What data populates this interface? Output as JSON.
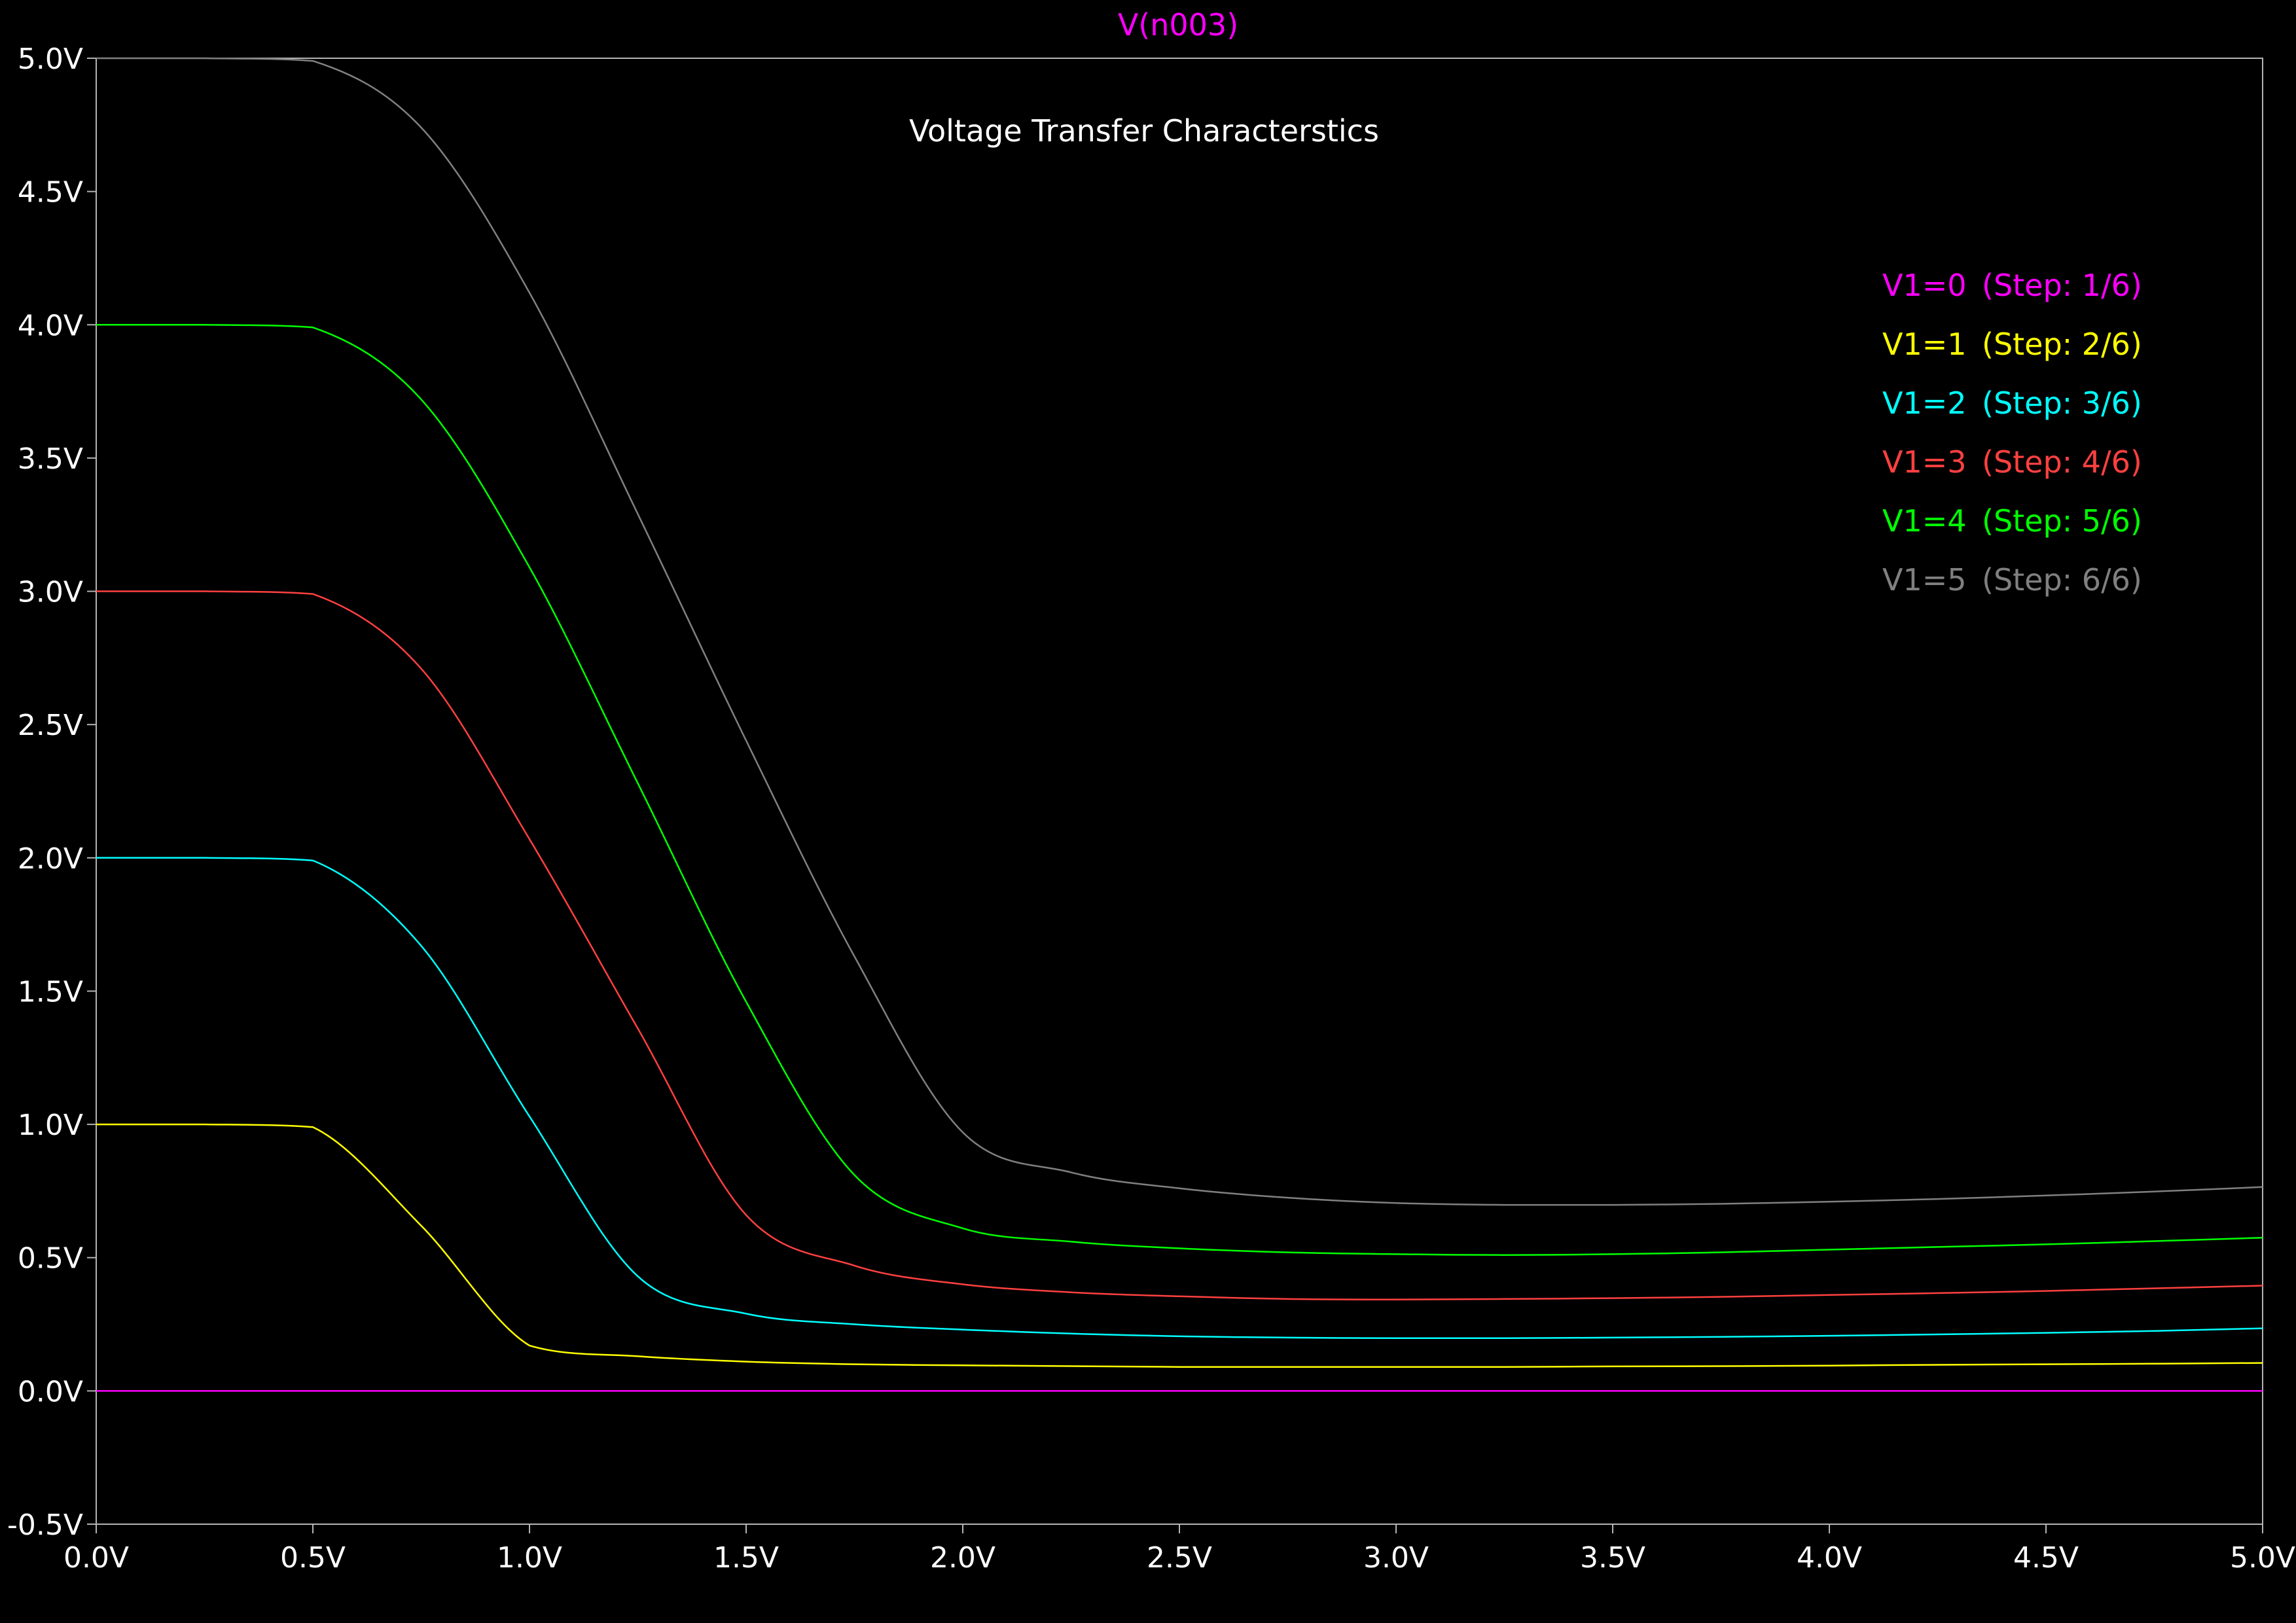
{
  "trace_name": "V(n003)",
  "colors": {
    "background": "#000000",
    "axis": "#b4b4b4",
    "text": "#ffffff",
    "trace_name": "#ff00ff"
  },
  "chart_data": {
    "type": "line",
    "title": "Voltage Transfer Characterstics",
    "xlabel": "",
    "ylabel": "",
    "xlim": [
      0,
      5
    ],
    "ylim": [
      -0.5,
      5
    ],
    "grid": false,
    "legend_position": "top-right",
    "x_ticks": [
      "0.0V",
      "0.5V",
      "1.0V",
      "1.5V",
      "2.0V",
      "2.5V",
      "3.0V",
      "3.5V",
      "4.0V",
      "4.5V",
      "5.0V"
    ],
    "y_ticks": [
      "-0.5V",
      "0.0V",
      "0.5V",
      "1.0V",
      "1.5V",
      "2.0V",
      "2.5V",
      "3.0V",
      "3.5V",
      "4.0V",
      "4.5V",
      "5.0V"
    ],
    "x": [
      0,
      0.25,
      0.5,
      0.75,
      1.0,
      1.25,
      1.5,
      1.75,
      2.0,
      2.25,
      2.5,
      2.75,
      3.0,
      3.25,
      3.5,
      3.75,
      4.0,
      4.25,
      4.5,
      4.75,
      5.0
    ],
    "series": [
      {
        "name": "V1=0",
        "step": "(Step: 1/6)",
        "color": "#ff00ff",
        "values": [
          0,
          0,
          0,
          0,
          0,
          0,
          0,
          0,
          0,
          0,
          0,
          0,
          0,
          0,
          0,
          0,
          0,
          0,
          0,
          0,
          0
        ]
      },
      {
        "name": "V1=1",
        "step": "(Step: 2/6)",
        "color": "#ffff00",
        "values": [
          1.0,
          1.0,
          0.99,
          0.62,
          0.17,
          0.13,
          0.11,
          0.1,
          0.096,
          0.093,
          0.09,
          0.09,
          0.09,
          0.09,
          0.092,
          0.093,
          0.095,
          0.098,
          0.1,
          0.102,
          0.105
        ]
      },
      {
        "name": "V1=2",
        "step": "(Step: 3/6)",
        "color": "#00ffff",
        "values": [
          2.0,
          2.0,
          1.99,
          1.67,
          1.03,
          0.43,
          0.29,
          0.25,
          0.23,
          0.215,
          0.205,
          0.2,
          0.198,
          0.198,
          0.2,
          0.203,
          0.207,
          0.212,
          0.218,
          0.225,
          0.235
        ]
      },
      {
        "name": "V1=3",
        "step": "(Step: 4/6)",
        "color": "#ff4040",
        "values": [
          3.0,
          3.0,
          2.99,
          2.71,
          2.07,
          1.36,
          0.66,
          0.47,
          0.4,
          0.37,
          0.355,
          0.345,
          0.343,
          0.345,
          0.348,
          0.353,
          0.36,
          0.367,
          0.375,
          0.385,
          0.395
        ]
      },
      {
        "name": "V1=4",
        "step": "(Step: 5/6)",
        "color": "#00ff00",
        "values": [
          4.0,
          4.0,
          3.99,
          3.72,
          3.09,
          2.28,
          1.46,
          0.81,
          0.61,
          0.56,
          0.535,
          0.52,
          0.513,
          0.51,
          0.513,
          0.52,
          0.53,
          0.54,
          0.55,
          0.562,
          0.575
        ]
      },
      {
        "name": "V1=5",
        "step": "(Step: 6/6)",
        "color": "#808080",
        "values": [
          5.0,
          5.0,
          4.99,
          4.74,
          4.12,
          3.29,
          2.44,
          1.63,
          0.97,
          0.82,
          0.76,
          0.725,
          0.705,
          0.698,
          0.698,
          0.702,
          0.71,
          0.72,
          0.733,
          0.748,
          0.765
        ]
      }
    ]
  }
}
